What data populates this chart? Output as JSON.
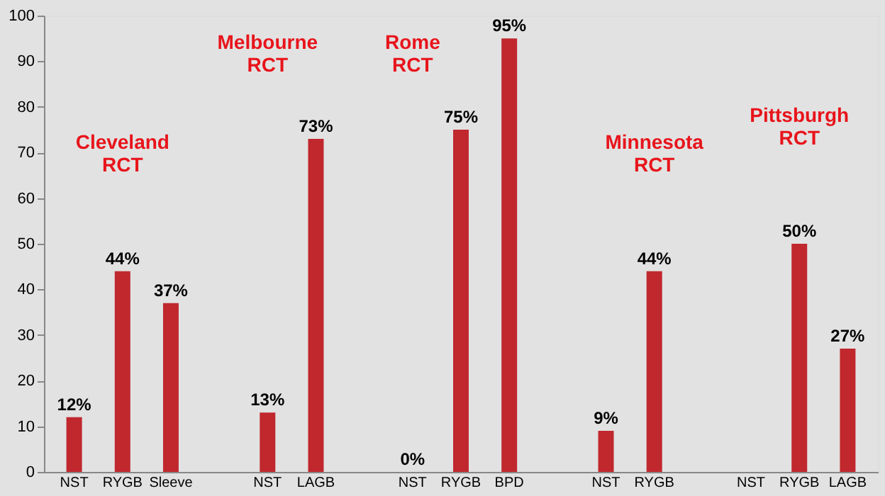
{
  "chart_data": {
    "type": "bar",
    "categories": [
      "NST",
      "RYGB",
      "Sleeve",
      null,
      "NST",
      "LAGB",
      null,
      "NST",
      "RYGB",
      "BPD",
      null,
      "NST",
      "RYGB",
      null,
      "NST",
      "RYGB",
      "LAGB"
    ],
    "values": [
      12,
      44,
      37,
      null,
      13,
      73,
      null,
      0,
      75,
      95,
      null,
      9,
      44,
      null,
      0,
      50,
      27
    ],
    "value_labels": [
      "12%",
      "44%",
      "37%",
      null,
      "13%",
      "73%",
      null,
      "0%",
      "75%",
      "95%",
      null,
      "9%",
      "44%",
      null,
      null,
      "50%",
      "27%"
    ],
    "color": "#c0282e",
    "ylim": [
      0,
      100
    ],
    "yticks": [
      0,
      10,
      20,
      30,
      40,
      50,
      60,
      70,
      80,
      90,
      100
    ],
    "annotations": [
      "Cleveland RCT",
      "Melbourne RCT",
      "Rome RCT",
      "Minnesota RCT",
      "Pittsburgh RCT"
    ]
  }
}
